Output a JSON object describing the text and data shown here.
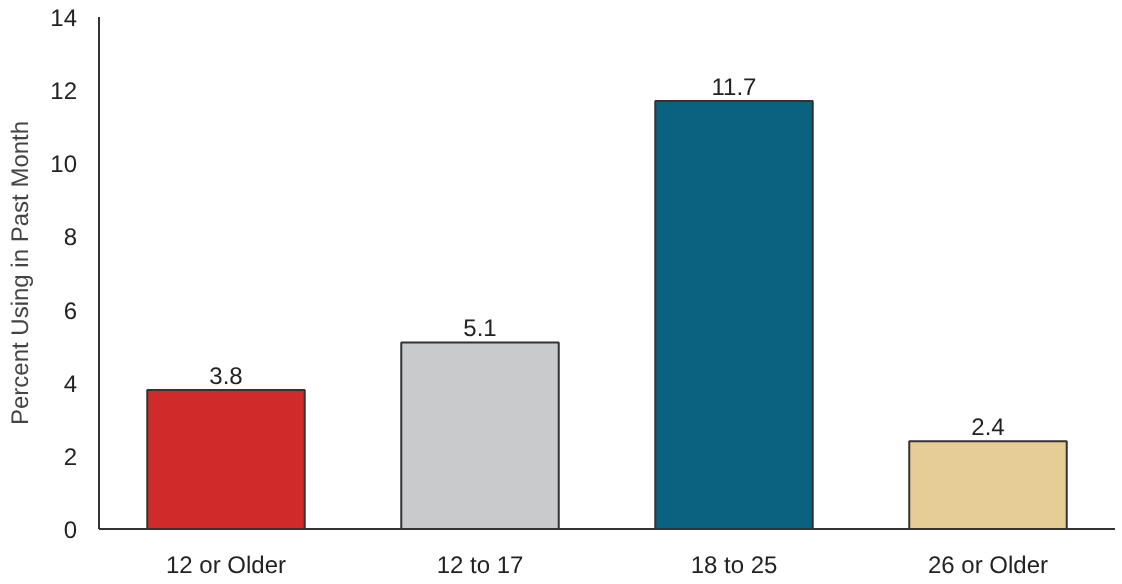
{
  "chart_data": {
    "type": "bar",
    "ylabel": "Percent Using in Past Month",
    "categories": [
      "12 or Older",
      "12 to 17",
      "18 to 25",
      "26 or Older"
    ],
    "values": [
      3.8,
      5.1,
      11.7,
      2.4
    ],
    "colors": [
      "#d12a2a",
      "#c9cacc",
      "#0a6180",
      "#e6cd96"
    ],
    "ylim": [
      0,
      14
    ],
    "yticks": [
      0,
      2,
      4,
      6,
      8,
      10,
      12,
      14
    ],
    "data_labels": true,
    "grid": false
  }
}
